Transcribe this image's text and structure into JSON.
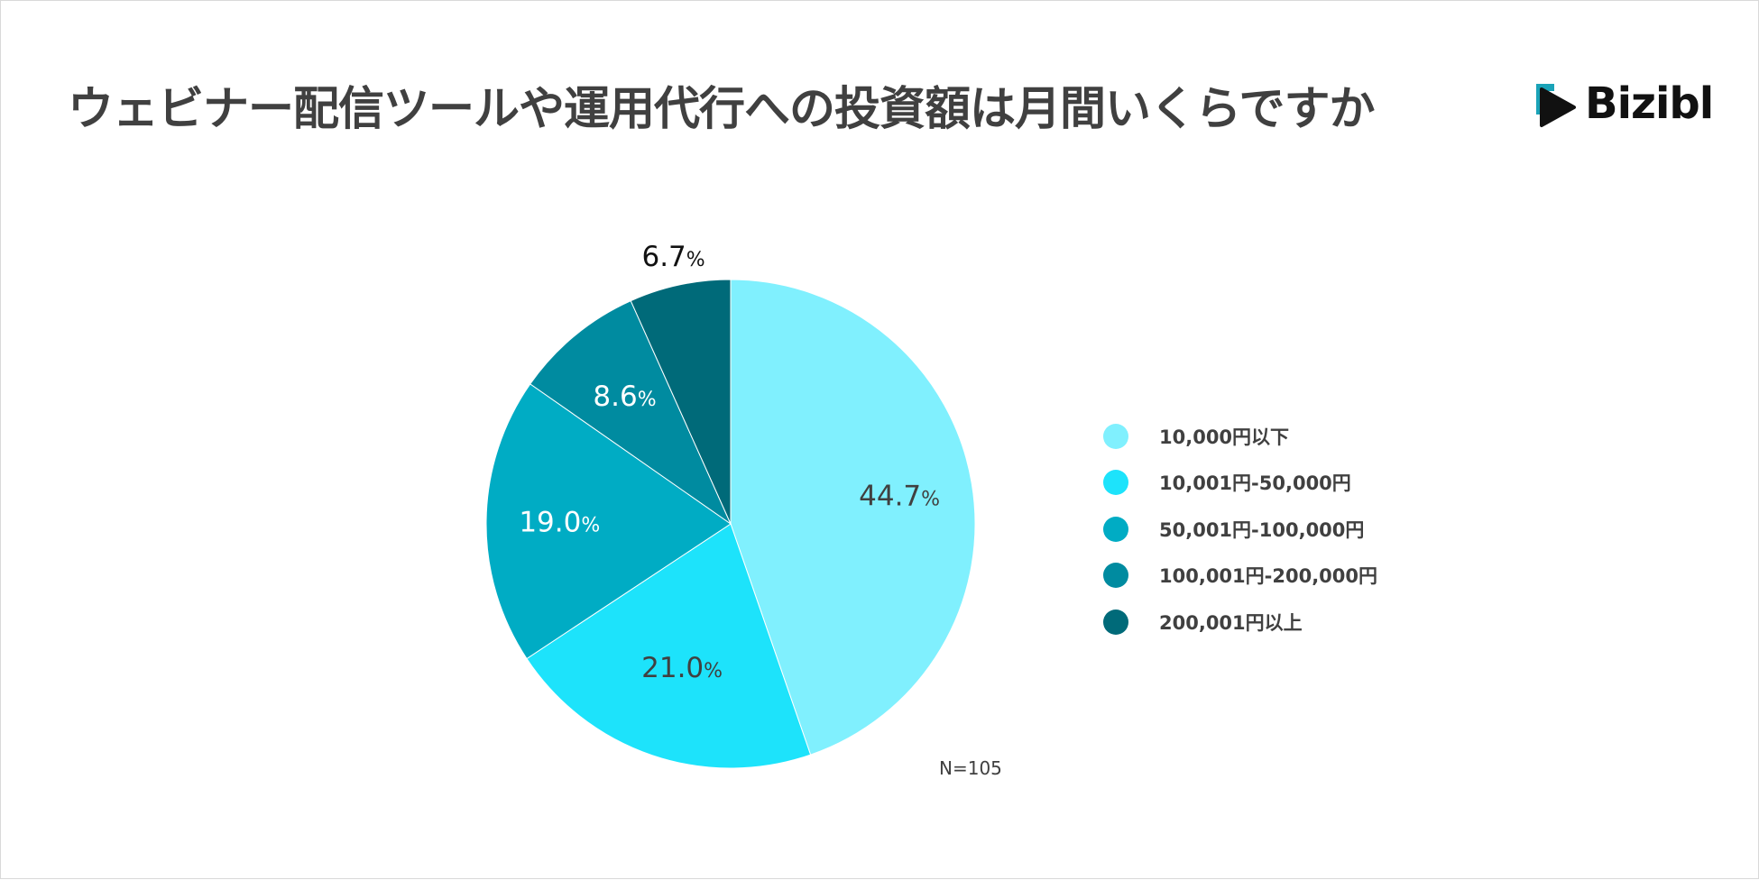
{
  "title": "ウェビナー配信ツールや運用代行への投資額は月間いくらですか",
  "logo": {
    "text": "Bizibl",
    "icon": "play-triangle-icon",
    "accent": "#1aa3b8",
    "dark": "#111111"
  },
  "note": "N=105",
  "chart_data": {
    "type": "pie",
    "title": "ウェビナー配信ツールや運用代行への投資額は月間いくらですか",
    "categories": [
      "10,000円以下",
      "10,001円-50,000円",
      "50,001円-100,000円",
      "100,001円-200,000円",
      "200,001円以上"
    ],
    "values": [
      44.7,
      21.0,
      19.0,
      8.6,
      6.7
    ],
    "labels": [
      "44.7",
      "21.0",
      "19.0",
      "8.6",
      "6.7"
    ],
    "unit": "%",
    "colors": [
      "#80f0fe",
      "#1de3fb",
      "#00acc4",
      "#008ba0",
      "#006a79"
    ],
    "label_colors": [
      "#404040",
      "#404040",
      "#ffffff",
      "#ffffff",
      "#111111"
    ],
    "start_angle_deg": 0,
    "direction": "clockwise",
    "legend_position": "right"
  }
}
